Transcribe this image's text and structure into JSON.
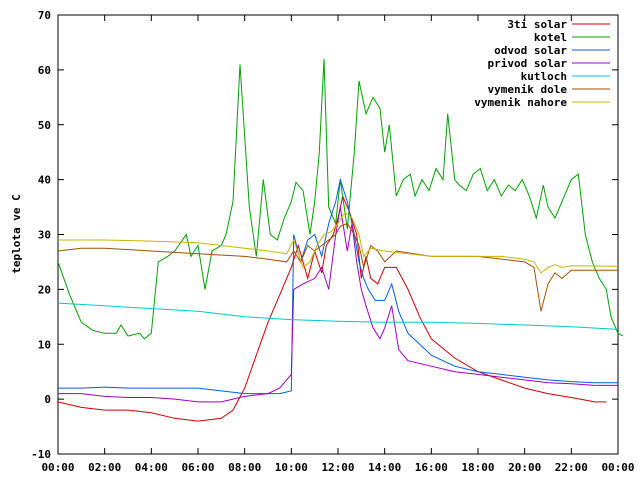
{
  "chart_data": {
    "type": "line",
    "title": "",
    "xlabel": "",
    "ylabel": "teplota ve C",
    "xlim": [
      0,
      24
    ],
    "ylim": [
      -10,
      70
    ],
    "grid": false,
    "legend_position": "top-right",
    "x_ticks": [
      "00:00",
      "02:00",
      "04:00",
      "06:00",
      "08:00",
      "10:00",
      "12:00",
      "14:00",
      "16:00",
      "18:00",
      "20:00",
      "22:00",
      "00:00"
    ],
    "y_ticks": [
      "-10",
      "0",
      "10",
      "20",
      "30",
      "40",
      "50",
      "60",
      "70"
    ],
    "series": [
      {
        "name": "3ti solar",
        "color": "#cc0000",
        "points": [
          [
            0,
            -0.5
          ],
          [
            1,
            -1.5
          ],
          [
            2,
            -2
          ],
          [
            3,
            -2
          ],
          [
            4,
            -2.5
          ],
          [
            5,
            -3.5
          ],
          [
            6,
            -4
          ],
          [
            7,
            -3.5
          ],
          [
            7.5,
            -2
          ],
          [
            8,
            2
          ],
          [
            8.5,
            8
          ],
          [
            9,
            14
          ],
          [
            9.5,
            19
          ],
          [
            10,
            24
          ],
          [
            10.3,
            28
          ],
          [
            10.7,
            22
          ],
          [
            11,
            27
          ],
          [
            11.3,
            23
          ],
          [
            11.5,
            28
          ],
          [
            11.8,
            30
          ],
          [
            12,
            33
          ],
          [
            12.2,
            37
          ],
          [
            12.5,
            34
          ],
          [
            12.8,
            30
          ],
          [
            13,
            22
          ],
          [
            13.2,
            26
          ],
          [
            13.4,
            22
          ],
          [
            13.7,
            21
          ],
          [
            14,
            24
          ],
          [
            14.5,
            24
          ],
          [
            15,
            20
          ],
          [
            15.5,
            15
          ],
          [
            16,
            11
          ],
          [
            17,
            7.5
          ],
          [
            18,
            5
          ],
          [
            19,
            3.5
          ],
          [
            20,
            2
          ],
          [
            21,
            1
          ],
          [
            22,
            0.3
          ],
          [
            23,
            -0.5
          ],
          [
            23.5,
            -0.5
          ]
        ]
      },
      {
        "name": "kotel",
        "color": "#00a000",
        "points": [
          [
            0,
            25
          ],
          [
            0.5,
            19
          ],
          [
            1,
            14
          ],
          [
            1.5,
            12.5
          ],
          [
            2,
            12
          ],
          [
            2.5,
            12
          ],
          [
            2.7,
            13.5
          ],
          [
            3,
            11.5
          ],
          [
            3.5,
            12
          ],
          [
            3.7,
            11
          ],
          [
            4,
            12
          ],
          [
            4.3,
            25
          ],
          [
            4.7,
            26
          ],
          [
            5,
            27
          ],
          [
            5.5,
            30
          ],
          [
            5.7,
            26
          ],
          [
            6,
            28
          ],
          [
            6.3,
            20
          ],
          [
            6.6,
            27
          ],
          [
            7,
            28
          ],
          [
            7.2,
            30
          ],
          [
            7.5,
            36
          ],
          [
            7.8,
            61
          ],
          [
            8.2,
            35
          ],
          [
            8.5,
            26
          ],
          [
            8.8,
            40
          ],
          [
            9.1,
            30
          ],
          [
            9.4,
            29
          ],
          [
            9.7,
            33
          ],
          [
            10,
            36
          ],
          [
            10.2,
            39.5
          ],
          [
            10.5,
            38
          ],
          [
            10.8,
            30
          ],
          [
            11,
            36
          ],
          [
            11.2,
            45
          ],
          [
            11.4,
            62
          ],
          [
            11.6,
            35
          ],
          [
            11.9,
            32
          ],
          [
            12.1,
            40
          ],
          [
            12.4,
            31
          ],
          [
            12.7,
            45
          ],
          [
            12.9,
            58
          ],
          [
            13.2,
            52
          ],
          [
            13.5,
            55
          ],
          [
            13.8,
            53
          ],
          [
            14,
            45
          ],
          [
            14.2,
            50
          ],
          [
            14.5,
            37
          ],
          [
            14.8,
            40
          ],
          [
            15.1,
            41
          ],
          [
            15.3,
            37
          ],
          [
            15.6,
            40
          ],
          [
            15.9,
            38
          ],
          [
            16.2,
            42
          ],
          [
            16.5,
            40
          ],
          [
            16.7,
            52
          ],
          [
            17,
            40
          ],
          [
            17.2,
            39
          ],
          [
            17.5,
            38
          ],
          [
            17.8,
            41
          ],
          [
            18.1,
            42
          ],
          [
            18.4,
            38
          ],
          [
            18.7,
            40
          ],
          [
            19,
            37
          ],
          [
            19.3,
            39
          ],
          [
            19.6,
            38
          ],
          [
            19.9,
            40
          ],
          [
            20.2,
            37
          ],
          [
            20.5,
            33
          ],
          [
            20.8,
            39
          ],
          [
            21,
            35
          ],
          [
            21.3,
            33
          ],
          [
            21.6,
            36
          ],
          [
            22,
            40
          ],
          [
            22.3,
            41
          ],
          [
            22.6,
            30
          ],
          [
            22.9,
            25
          ],
          [
            23.2,
            22
          ],
          [
            23.5,
            20
          ],
          [
            23.7,
            15
          ],
          [
            24,
            12
          ],
          [
            24.2,
            11.5
          ]
        ]
      },
      {
        "name": "odvod solar",
        "color": "#0060e0",
        "points": [
          [
            0,
            2
          ],
          [
            1,
            2
          ],
          [
            2,
            2.2
          ],
          [
            3,
            2
          ],
          [
            4,
            2
          ],
          [
            5,
            2
          ],
          [
            6,
            2
          ],
          [
            7,
            1.5
          ],
          [
            8,
            1
          ],
          [
            9,
            1
          ],
          [
            9.5,
            1
          ],
          [
            10,
            1.5
          ],
          [
            10.1,
            30
          ],
          [
            10.4,
            25
          ],
          [
            10.7,
            29
          ],
          [
            11,
            30
          ],
          [
            11.3,
            26
          ],
          [
            11.6,
            32
          ],
          [
            11.9,
            36
          ],
          [
            12.1,
            40
          ],
          [
            12.4,
            36
          ],
          [
            12.7,
            30
          ],
          [
            12.9,
            25
          ],
          [
            13.1,
            22
          ],
          [
            13.3,
            20
          ],
          [
            13.6,
            18
          ],
          [
            14,
            18
          ],
          [
            14.3,
            21
          ],
          [
            14.6,
            16
          ],
          [
            15,
            12
          ],
          [
            15.5,
            10
          ],
          [
            16,
            8
          ],
          [
            17,
            6
          ],
          [
            18,
            5
          ],
          [
            19,
            4.5
          ],
          [
            20,
            4
          ],
          [
            21,
            3.5
          ],
          [
            22,
            3.2
          ],
          [
            23,
            3
          ],
          [
            24,
            3
          ]
        ]
      },
      {
        "name": "privod solar",
        "color": "#a000c0",
        "points": [
          [
            0,
            1
          ],
          [
            1,
            1
          ],
          [
            2,
            0.5
          ],
          [
            3,
            0.3
          ],
          [
            4,
            0.3
          ],
          [
            5,
            0
          ],
          [
            6,
            -0.5
          ],
          [
            7,
            -0.5
          ],
          [
            8,
            0.5
          ],
          [
            9,
            1
          ],
          [
            9.5,
            2
          ],
          [
            10,
            4.5
          ],
          [
            10.1,
            20
          ],
          [
            10.5,
            21
          ],
          [
            11,
            22
          ],
          [
            11.3,
            24
          ],
          [
            11.6,
            20
          ],
          [
            11.9,
            30
          ],
          [
            12.1,
            35
          ],
          [
            12.4,
            27
          ],
          [
            12.6,
            32
          ],
          [
            12.8,
            25
          ],
          [
            13,
            20
          ],
          [
            13.2,
            17
          ],
          [
            13.5,
            13
          ],
          [
            13.8,
            11
          ],
          [
            14,
            13
          ],
          [
            14.3,
            17
          ],
          [
            14.6,
            9
          ],
          [
            15,
            7
          ],
          [
            16,
            6
          ],
          [
            17,
            5
          ],
          [
            18,
            4.5
          ],
          [
            19,
            4
          ],
          [
            20,
            3.5
          ],
          [
            21,
            3
          ],
          [
            22,
            2.8
          ],
          [
            23,
            2.5
          ],
          [
            24,
            2.5
          ]
        ]
      },
      {
        "name": "kutloch",
        "color": "#00c8c8",
        "points": [
          [
            0,
            17.5
          ],
          [
            2,
            17
          ],
          [
            4,
            16.5
          ],
          [
            6,
            16
          ],
          [
            8,
            15
          ],
          [
            10,
            14.5
          ],
          [
            12,
            14.2
          ],
          [
            14,
            14
          ],
          [
            16,
            14
          ],
          [
            18,
            13.8
          ],
          [
            20,
            13.5
          ],
          [
            22,
            13.2
          ],
          [
            24,
            12.7
          ]
        ]
      },
      {
        "name": "vymenik dole",
        "color": "#a05000",
        "points": [
          [
            0,
            27
          ],
          [
            1,
            27.5
          ],
          [
            2,
            27.5
          ],
          [
            4,
            27
          ],
          [
            6,
            26.5
          ],
          [
            8,
            26
          ],
          [
            9,
            25.5
          ],
          [
            9.8,
            25
          ],
          [
            10.1,
            27
          ],
          [
            10.4,
            25
          ],
          [
            10.7,
            28
          ],
          [
            11,
            27
          ],
          [
            11.3,
            28
          ],
          [
            11.6,
            29
          ],
          [
            11.9,
            30
          ],
          [
            12.1,
            31.5
          ],
          [
            12.4,
            32
          ],
          [
            12.7,
            30
          ],
          [
            12.9,
            28
          ],
          [
            13.1,
            24
          ],
          [
            13.4,
            28
          ],
          [
            13.7,
            27
          ],
          [
            14,
            25
          ],
          [
            14.5,
            27
          ],
          [
            16,
            26
          ],
          [
            18,
            26
          ],
          [
            20,
            25
          ],
          [
            20.4,
            24
          ],
          [
            20.7,
            16
          ],
          [
            21,
            21
          ],
          [
            21.3,
            23
          ],
          [
            21.6,
            22
          ],
          [
            22,
            23.5
          ],
          [
            24,
            23.5
          ]
        ]
      },
      {
        "name": "vymenik nahore",
        "color": "#c8b400",
        "points": [
          [
            0,
            29
          ],
          [
            2,
            29
          ],
          [
            4,
            28.8
          ],
          [
            6,
            28.5
          ],
          [
            8,
            27.5
          ],
          [
            9,
            27
          ],
          [
            9.8,
            26.5
          ],
          [
            10.1,
            29
          ],
          [
            10.5,
            24
          ],
          [
            10.8,
            25
          ],
          [
            11.1,
            28
          ],
          [
            11.4,
            30
          ],
          [
            11.7,
            30.5
          ],
          [
            12,
            32
          ],
          [
            12.3,
            34
          ],
          [
            12.6,
            33
          ],
          [
            12.9,
            30
          ],
          [
            13.1,
            26
          ],
          [
            13.4,
            27.5
          ],
          [
            14,
            27
          ],
          [
            15,
            26.5
          ],
          [
            16,
            26
          ],
          [
            17,
            26
          ],
          [
            18,
            26
          ],
          [
            19,
            26
          ],
          [
            20,
            25.5
          ],
          [
            20.4,
            25
          ],
          [
            20.7,
            23
          ],
          [
            21,
            24
          ],
          [
            21.3,
            24.5
          ],
          [
            21.6,
            24
          ],
          [
            22,
            24.3
          ],
          [
            24,
            24.2
          ]
        ]
      }
    ]
  }
}
